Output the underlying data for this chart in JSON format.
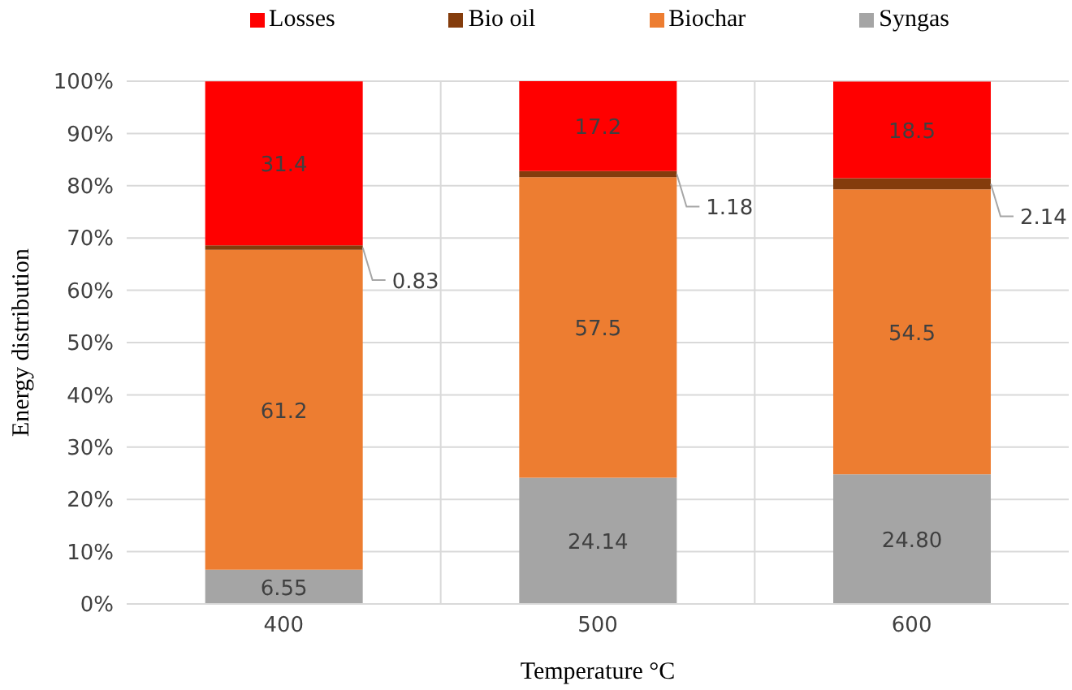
{
  "chart_data": {
    "type": "bar",
    "stacked": true,
    "xlabel": "Temperature °C",
    "ylabel": "Energy distribution",
    "categories": [
      "400",
      "500",
      "600"
    ],
    "series": [
      {
        "name": "Syngas",
        "color": "#a5a5a5",
        "values": [
          6.55,
          24.14,
          24.8
        ],
        "value_labels": [
          "6.55",
          "24.14",
          "24.80"
        ]
      },
      {
        "name": "Biochar",
        "color": "#ed7d31",
        "values": [
          61.2,
          57.5,
          54.5
        ],
        "value_labels": [
          "61.2",
          "57.5",
          "54.5"
        ]
      },
      {
        "name": "Bio oil",
        "color": "#843c0c",
        "values": [
          0.83,
          1.18,
          2.14
        ],
        "value_labels": [
          "0.83",
          "1.18",
          "2.14"
        ]
      },
      {
        "name": "Losses",
        "color": "#ff0000",
        "values": [
          31.4,
          17.2,
          18.5
        ],
        "value_labels": [
          "31.4",
          "17.2",
          "18.5"
        ]
      }
    ],
    "ylim": [
      0,
      100
    ],
    "yticks": [
      {
        "value": 0,
        "label": "0%"
      },
      {
        "value": 10,
        "label": "10%"
      },
      {
        "value": 20,
        "label": "20%"
      },
      {
        "value": 30,
        "label": "30%"
      },
      {
        "value": 40,
        "label": "40%"
      },
      {
        "value": 50,
        "label": "50%"
      },
      {
        "value": 60,
        "label": "60%"
      },
      {
        "value": 70,
        "label": "70%"
      },
      {
        "value": 80,
        "label": "80%"
      },
      {
        "value": 90,
        "label": "90%"
      },
      {
        "value": 100,
        "label": "100%"
      }
    ],
    "grid": true,
    "legend": "top"
  }
}
